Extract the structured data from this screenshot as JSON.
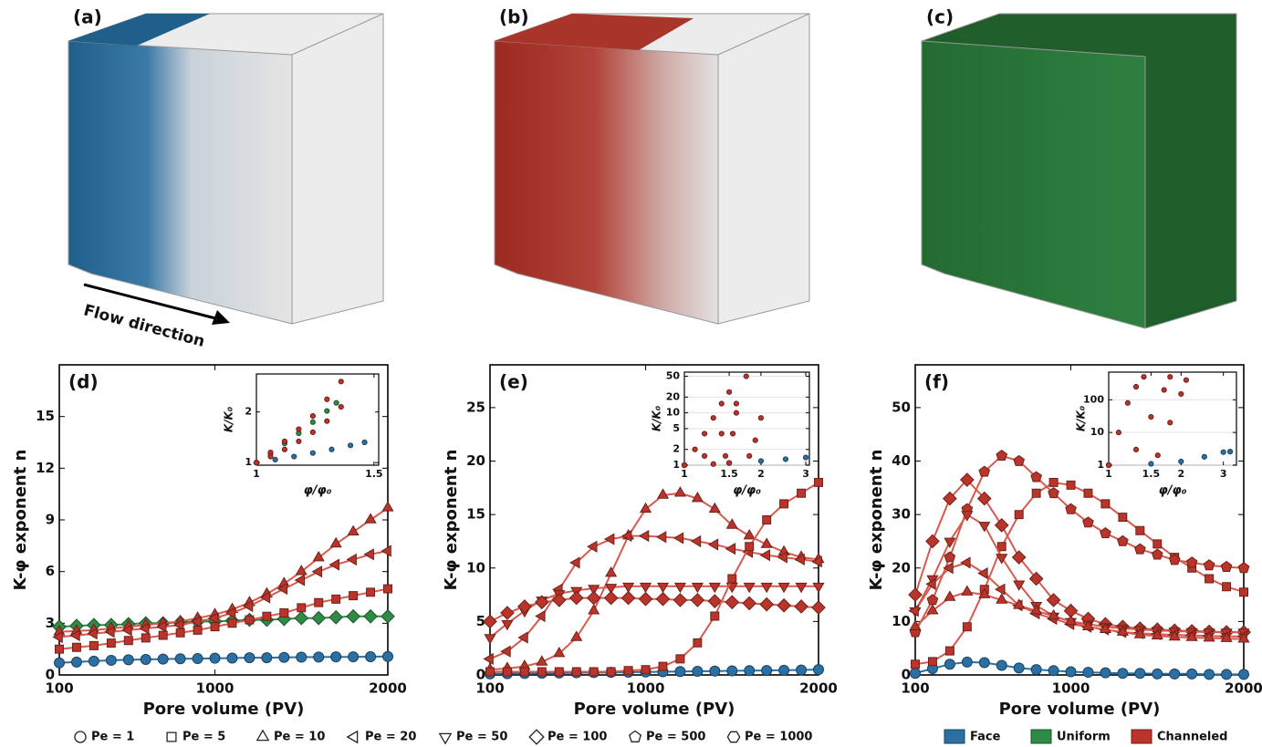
{
  "renderings": [
    {
      "label": "(a)"
    },
    {
      "label": "(b)"
    },
    {
      "label": "(c)"
    }
  ],
  "flow_label": "Flow direction",
  "chart_data": [
    {
      "type": "line",
      "panel_label": "(d)",
      "xlabel": "Pore volume (PV)",
      "ylabel": "K-φ exponent  n",
      "xlim": [
        100,
        2000
      ],
      "ylim": [
        0,
        18
      ],
      "xticks": [
        100,
        1000,
        2000
      ],
      "yticks": [
        0,
        3,
        6,
        9,
        12,
        15
      ],
      "x": [
        100,
        200,
        300,
        400,
        500,
        600,
        700,
        800,
        900,
        1000,
        1100,
        1200,
        1300,
        1400,
        1500,
        1600,
        1700,
        1800,
        1900,
        2000
      ],
      "series": [
        {
          "color": "#2b6fa3",
          "marker": "circle",
          "values": [
            0.7,
            0.75,
            0.8,
            0.85,
            0.88,
            0.9,
            0.92,
            0.94,
            0.95,
            0.97,
            0.98,
            1.0,
            1.0,
            1.02,
            1.03,
            1.04,
            1.05,
            1.05,
            1.06,
            1.07
          ]
        },
        {
          "color": "#2e8b45",
          "marker": "diamond",
          "values": [
            2.8,
            2.85,
            2.9,
            2.9,
            2.95,
            3.0,
            3.0,
            3.05,
            3.1,
            3.1,
            3.15,
            3.2,
            3.2,
            3.25,
            3.3,
            3.3,
            3.35,
            3.4,
            3.4,
            3.4
          ]
        },
        {
          "color": "#b9352b",
          "marker": "triangle",
          "values": [
            2.5,
            2.55,
            2.6,
            2.7,
            2.8,
            2.9,
            3.0,
            3.1,
            3.3,
            3.5,
            3.8,
            4.2,
            4.7,
            5.3,
            6.0,
            6.8,
            7.6,
            8.3,
            9.0,
            9.7
          ]
        },
        {
          "color": "#b9352b",
          "marker": "triangle-left",
          "values": [
            2.2,
            2.3,
            2.4,
            2.5,
            2.6,
            2.7,
            2.8,
            2.9,
            3.1,
            3.3,
            3.6,
            4.0,
            4.5,
            5.0,
            5.5,
            6.0,
            6.4,
            6.7,
            7.0,
            7.2
          ]
        },
        {
          "color": "#b9352b",
          "marker": "square",
          "values": [
            1.5,
            1.6,
            1.7,
            1.85,
            2.0,
            2.15,
            2.3,
            2.45,
            2.6,
            2.8,
            3.0,
            3.2,
            3.4,
            3.6,
            3.9,
            4.2,
            4.4,
            4.6,
            4.8,
            5.0
          ]
        }
      ],
      "inset": {
        "type": "scatter",
        "xlabel": "φ/φ₀",
        "ylabel": "K/K₀",
        "xlim": [
          1,
          1.52
        ],
        "ylim": [
          0.95,
          2.75
        ],
        "xticks": [
          1,
          1.5
        ],
        "yticks": [
          1,
          2
        ],
        "xlog": false,
        "ylog": false,
        "series": [
          {
            "color": "#2b6fa3",
            "x": [
              1,
              1.08,
              1.16,
              1.24,
              1.32,
              1.4,
              1.46
            ],
            "values": [
              1,
              1.06,
              1.12,
              1.19,
              1.26,
              1.34,
              1.4
            ]
          },
          {
            "color": "#2e8b45",
            "x": [
              1,
              1.06,
              1.12,
              1.18,
              1.24,
              1.3,
              1.34
            ],
            "values": [
              1,
              1.18,
              1.38,
              1.58,
              1.8,
              2.02,
              2.18
            ]
          },
          {
            "color": "#b9352b",
            "x": [
              1,
              1.06,
              1.12,
              1.18,
              1.24,
              1.3,
              1.36
            ],
            "values": [
              1,
              1.2,
              1.42,
              1.66,
              1.92,
              2.25,
              2.6
            ]
          },
          {
            "color": "#b9352b",
            "x": [
              1,
              1.06,
              1.12,
              1.18,
              1.24,
              1.3,
              1.36
            ],
            "values": [
              1,
              1.12,
              1.26,
              1.42,
              1.6,
              1.82,
              2.1
            ]
          }
        ]
      }
    },
    {
      "type": "line",
      "panel_label": "(e)",
      "xlabel": "Pore volume (PV)",
      "ylabel": "K-φ exponent  n",
      "xlim": [
        100,
        2000
      ],
      "ylim": [
        0,
        29
      ],
      "xticks": [
        100,
        1000,
        2000
      ],
      "yticks": [
        0,
        5,
        10,
        15,
        20,
        25
      ],
      "x": [
        100,
        200,
        300,
        400,
        500,
        600,
        700,
        800,
        900,
        1000,
        1100,
        1200,
        1300,
        1400,
        1500,
        1600,
        1700,
        1800,
        1900,
        2000
      ],
      "series": [
        {
          "color": "#2b6fa3",
          "marker": "circle",
          "values": [
            0.1,
            0.12,
            0.14,
            0.16,
            0.18,
            0.2,
            0.22,
            0.24,
            0.26,
            0.28,
            0.3,
            0.32,
            0.34,
            0.36,
            0.38,
            0.4,
            0.42,
            0.44,
            0.46,
            0.5
          ]
        },
        {
          "color": "#b9352b",
          "marker": "triangle",
          "values": [
            0.5,
            0.6,
            0.8,
            1.2,
            2,
            3.5,
            6,
            9.5,
            13,
            15.5,
            16.8,
            17,
            16.5,
            15.5,
            14,
            13,
            12.2,
            11.5,
            11,
            10.8
          ]
        },
        {
          "color": "#b9352b",
          "marker": "triangle-left",
          "values": [
            1.5,
            2.2,
            3.5,
            5.5,
            8,
            10.5,
            12,
            12.7,
            13,
            13,
            12.9,
            12.8,
            12.5,
            12.2,
            11.8,
            11.5,
            11.2,
            11,
            10.8,
            10.6
          ]
        },
        {
          "color": "#b9352b",
          "marker": "triangle-down",
          "values": [
            3.5,
            4.8,
            6,
            7,
            7.6,
            7.9,
            8.1,
            8.2,
            8.3,
            8.3,
            8.3,
            8.3,
            8.3,
            8.3,
            8.3,
            8.3,
            8.3,
            8.3,
            8.3,
            8.3
          ]
        },
        {
          "color": "#b9352b",
          "marker": "diamond",
          "values": [
            5,
            5.8,
            6.4,
            6.8,
            7,
            7.2,
            7.2,
            7.2,
            7.2,
            7.1,
            7.1,
            7,
            7,
            6.9,
            6.8,
            6.7,
            6.6,
            6.5,
            6.4,
            6.3
          ]
        },
        {
          "color": "#b9352b",
          "marker": "square",
          "values": [
            0.3,
            0.3,
            0.3,
            0.3,
            0.3,
            0.3,
            0.3,
            0.3,
            0.4,
            0.5,
            0.8,
            1.5,
            3,
            5.5,
            9,
            12,
            14.5,
            16,
            17,
            18
          ]
        }
      ],
      "inset": {
        "type": "scatter",
        "xlabel": "φ/φ₀",
        "ylabel": "K/K₀",
        "xlim": [
          1,
          3.1
        ],
        "ylim": [
          1,
          60
        ],
        "xticks": [
          1,
          1.5,
          2,
          3
        ],
        "yticks": [
          1,
          2,
          5,
          10,
          20,
          50
        ],
        "xlog": true,
        "ylog": true,
        "series": [
          {
            "color": "#2b6fa3",
            "x": [
              1,
              1.5,
              2,
              2.5,
              3
            ],
            "values": [
              1,
              1.1,
              1.2,
              1.3,
              1.4
            ]
          },
          {
            "color": "#b9352b",
            "x": [
              1,
              1.1,
              1.2,
              1.3,
              1.4,
              1.5
            ],
            "values": [
              1,
              2,
              4,
              8,
              15,
              25
            ]
          },
          {
            "color": "#b9352b",
            "x": [
              1,
              1.2,
              1.4,
              1.6,
              1.75
            ],
            "values": [
              1,
              1.5,
              4,
              15,
              50
            ]
          },
          {
            "color": "#b9352b",
            "x": [
              1,
              1.5,
              1.8,
              1.9,
              2.0
            ],
            "values": [
              1,
              1.1,
              1.5,
              3,
              8
            ]
          },
          {
            "color": "#b9352b",
            "x": [
              1,
              1.3,
              1.45,
              1.55,
              1.6
            ],
            "values": [
              1,
              1.05,
              1.5,
              4,
              10
            ]
          }
        ]
      }
    },
    {
      "type": "line",
      "panel_label": "(f)",
      "xlabel": "Pore volume (PV)",
      "ylabel": "K-φ exponent  n",
      "xlim": [
        100,
        2000
      ],
      "ylim": [
        0,
        58
      ],
      "xticks": [
        100,
        1000,
        2000
      ],
      "yticks": [
        0,
        10,
        20,
        30,
        40,
        50
      ],
      "x": [
        100,
        200,
        300,
        400,
        500,
        600,
        700,
        800,
        900,
        1000,
        1100,
        1200,
        1300,
        1400,
        1500,
        1600,
        1700,
        1800,
        1900,
        2000
      ],
      "series": [
        {
          "color": "#2b6fa3",
          "marker": "circle",
          "values": [
            0.3,
            1.2,
            2.0,
            2.4,
            2.3,
            1.8,
            1.3,
            1.0,
            0.8,
            0.6,
            0.5,
            0.4,
            0.3,
            0.3,
            0.2,
            0.2,
            0.2,
            0.1,
            0.1,
            0.1
          ]
        },
        {
          "color": "#b9352b",
          "marker": "square",
          "values": [
            2,
            2.5,
            4.5,
            9,
            16,
            24,
            30,
            34,
            36,
            35.5,
            34,
            32,
            29.5,
            27,
            24.5,
            22,
            20,
            18,
            16.5,
            15.5
          ]
        },
        {
          "color": "#b9352b",
          "marker": "pentagon",
          "values": [
            8,
            14,
            22,
            31,
            38,
            41,
            40,
            37,
            34,
            31,
            28.5,
            26.5,
            25,
            23.5,
            22.5,
            21.5,
            21,
            20.5,
            20.2,
            20
          ]
        },
        {
          "color": "#b9352b",
          "marker": "diamond",
          "values": [
            15,
            25,
            33,
            36.5,
            33,
            28,
            22,
            18,
            14,
            12,
            10.5,
            9.5,
            9,
            8.7,
            8.5,
            8.3,
            8.2,
            8.1,
            8,
            8
          ]
        },
        {
          "color": "#b9352b",
          "marker": "triangle-down",
          "values": [
            12,
            18,
            25,
            30,
            28,
            22,
            17,
            13,
            11,
            10,
            9.5,
            9,
            8.7,
            8.5,
            8.3,
            8.2,
            8.1,
            8,
            8,
            8
          ]
        },
        {
          "color": "#b9352b",
          "marker": "triangle-left",
          "values": [
            12,
            17,
            20,
            21,
            19,
            16,
            13,
            11.5,
            10.5,
            9.5,
            9,
            8.5,
            8,
            7.8,
            7.6,
            7.5,
            7.4,
            7.3,
            7.2,
            7.2
          ]
        },
        {
          "color": "#b9352b",
          "marker": "triangle",
          "values": [
            9,
            12,
            14.5,
            15.5,
            15,
            14,
            13,
            12,
            11,
            10,
            9,
            8.5,
            8,
            7.5,
            7.3,
            7.1,
            7,
            6.9,
            6.8,
            6.7
          ]
        }
      ],
      "inset": {
        "type": "scatter",
        "xlabel": "φ/φ₀",
        "ylabel": "K/K₀",
        "xlim": [
          1,
          3.4
        ],
        "ylim": [
          1,
          700
        ],
        "xticks": [
          1,
          1.5,
          2,
          3
        ],
        "yticks": [
          1,
          10,
          100
        ],
        "xlog": true,
        "ylog": true,
        "series": [
          {
            "color": "#2b6fa3",
            "x": [
              1,
              1.5,
              2,
              2.5,
              3,
              3.2
            ],
            "values": [
              1,
              1.1,
              1.3,
              1.8,
              2.5,
              2.6
            ]
          },
          {
            "color": "#b9352b",
            "x": [
              1,
              1.1,
              1.2,
              1.3,
              1.4
            ],
            "values": [
              1,
              10,
              80,
              250,
              500
            ]
          },
          {
            "color": "#b9352b",
            "x": [
              1,
              1.3,
              1.5,
              1.7,
              1.8
            ],
            "values": [
              1,
              3,
              30,
              200,
              500
            ]
          },
          {
            "color": "#b9352b",
            "x": [
              1,
              1.6,
              1.8,
              2.0,
              2.1
            ],
            "values": [
              1,
              2,
              20,
              150,
              400
            ]
          }
        ]
      }
    }
  ],
  "legend": {
    "markers": [
      {
        "label": "Pe = 1",
        "marker": "circle"
      },
      {
        "label": "Pe = 5",
        "marker": "square"
      },
      {
        "label": "Pe = 10",
        "marker": "triangle"
      },
      {
        "label": "Pe = 20",
        "marker": "triangle-left"
      },
      {
        "label": "Pe = 50",
        "marker": "triangle-down"
      },
      {
        "label": "Pe = 100",
        "marker": "diamond"
      },
      {
        "label": "Pe = 500",
        "marker": "pentagon"
      },
      {
        "label": "Pe = 1000",
        "marker": "hexagon"
      }
    ],
    "colors": [
      {
        "label": "Face",
        "color": "#2b6fa3"
      },
      {
        "label": "Uniform",
        "color": "#2e8b45"
      },
      {
        "label": "Channeled",
        "color": "#b9352b"
      }
    ]
  }
}
